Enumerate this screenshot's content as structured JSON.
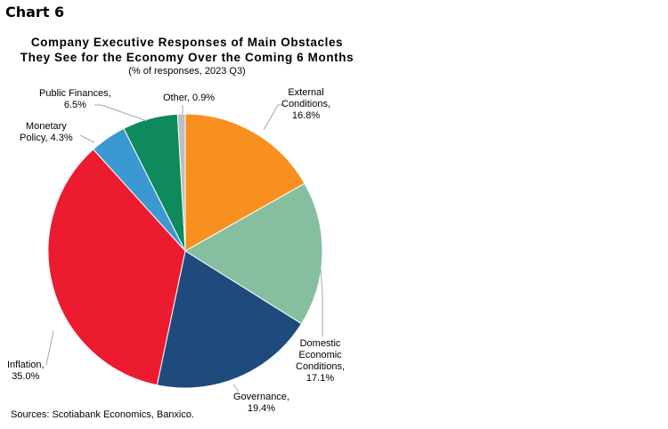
{
  "chart_number": "Chart 6",
  "source": "Sources: Scotiabank Economics, Banxico.",
  "chart_data": {
    "type": "pie",
    "title": [
      "Company Executive Responses of Main Obstacles",
      "They See for the Economy Over the Coming 6 Months"
    ],
    "subtitle": "(% of responses, 2023 Q3)",
    "start": "12 o'clock, clockwise",
    "slices": [
      {
        "label": "External Conditions",
        "value": 16.8,
        "color": "#F7901E",
        "data_label": [
          "External",
          "Conditions,",
          "16.8%"
        ]
      },
      {
        "label": "Domestic Economic Conditions",
        "value": 17.1,
        "color": "#86BF9F",
        "data_label": [
          "Domestic",
          "Economic",
          "Conditions,",
          "17.1%"
        ]
      },
      {
        "label": "Governance",
        "value": 19.4,
        "color": "#1F4B7C",
        "data_label": [
          "Governance,",
          "19.4%"
        ]
      },
      {
        "label": "Inflation",
        "value": 35.0,
        "color": "#EC1B30",
        "data_label": [
          "Inflation,",
          "35.0%"
        ]
      },
      {
        "label": "Monetary Policy",
        "value": 4.3,
        "color": "#3C98D0",
        "data_label": [
          "Monetary",
          "Policy, 4.3%"
        ]
      },
      {
        "label": "Public Finances",
        "value": 6.5,
        "color": "#0E8A5C",
        "data_label": [
          "Public Finances,",
          "6.5%"
        ]
      },
      {
        "label": "Other",
        "value": 0.9,
        "color": "#BEBEBE",
        "data_label": [
          "Other, 0.9%"
        ]
      }
    ]
  }
}
